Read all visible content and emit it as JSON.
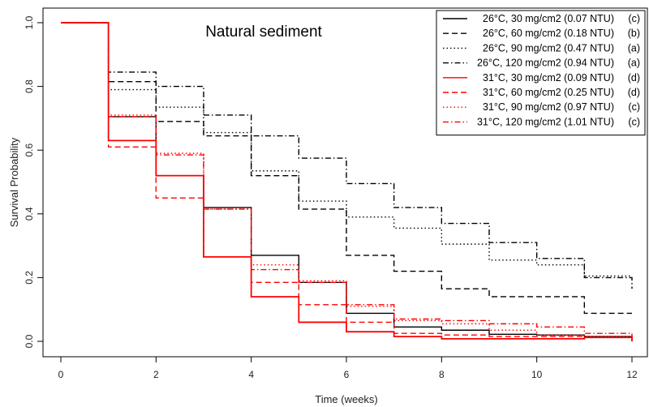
{
  "chart_data": {
    "type": "line",
    "step": true,
    "title": "Natural sediment",
    "xlabel": "Time (weeks)",
    "ylabel": "Survival Probability",
    "xlim": [
      0,
      12
    ],
    "ylim": [
      0,
      1
    ],
    "xticks": [
      0,
      2,
      4,
      6,
      8,
      10,
      12
    ],
    "yticks": [
      0.0,
      0.2,
      0.4,
      0.6,
      0.8,
      1.0
    ],
    "xtick_labels": [
      "0",
      "2",
      "4",
      "6",
      "8",
      "10",
      "12"
    ],
    "ytick_labels": [
      "0.0",
      "0.2",
      "0.4",
      "0.6",
      "0.8",
      "1.0"
    ],
    "grid": false,
    "legend_position": "top-right",
    "series": [
      {
        "name": "26°C,  30 mg/cm2 (0.07 NTU)",
        "group": "(c)",
        "color": "#000000",
        "dash": "solid",
        "x": [
          0,
          1,
          2,
          3,
          4,
          5,
          6,
          7,
          8,
          9,
          10,
          11,
          12
        ],
        "values": [
          1.0,
          0.705,
          0.52,
          0.42,
          0.27,
          0.185,
          0.088,
          0.045,
          0.035,
          0.022,
          0.02,
          0.015,
          0.0
        ]
      },
      {
        "name": "26°C,  60 mg/cm2 (0.18 NTU)",
        "group": "(b)",
        "color": "#000000",
        "dash": "dashed",
        "x": [
          0,
          1,
          2,
          3,
          4,
          5,
          6,
          7,
          8,
          9,
          10,
          11,
          12
        ],
        "values": [
          1.0,
          0.815,
          0.69,
          0.645,
          0.52,
          0.415,
          0.27,
          0.22,
          0.165,
          0.14,
          0.14,
          0.088,
          0.088
        ]
      },
      {
        "name": "26°C,  90 mg/cm2 (0.47 NTU)",
        "group": "(a)",
        "color": "#000000",
        "dash": "dotted",
        "x": [
          0,
          1,
          2,
          3,
          4,
          5,
          6,
          7,
          8,
          9,
          10,
          11,
          12
        ],
        "values": [
          1.0,
          0.79,
          0.735,
          0.655,
          0.535,
          0.44,
          0.39,
          0.355,
          0.305,
          0.255,
          0.24,
          0.205,
          0.205
        ]
      },
      {
        "name": "26°C, 120 mg/cm2 (0.94 NTU)",
        "group": "(a)",
        "color": "#000000",
        "dash": "dashdot",
        "x": [
          0,
          1,
          2,
          3,
          4,
          5,
          6,
          7,
          8,
          9,
          10,
          11,
          12
        ],
        "values": [
          1.0,
          0.845,
          0.8,
          0.71,
          0.645,
          0.575,
          0.495,
          0.42,
          0.37,
          0.31,
          0.26,
          0.2,
          0.165
        ]
      },
      {
        "name": "31°C,  30 mg/cm2 (0.09 NTU)",
        "group": "(d)",
        "color": "#ff0000",
        "dash": "solid",
        "x": [
          0,
          1,
          2,
          3,
          4,
          5,
          6,
          7,
          8,
          11,
          12
        ],
        "values": [
          1.0,
          0.63,
          0.52,
          0.265,
          0.14,
          0.06,
          0.03,
          0.015,
          0.008,
          0.012,
          0.0
        ]
      },
      {
        "name": "31°C,  60 mg/cm2 (0.25 NTU)",
        "group": "(d)",
        "color": "#ff0000",
        "dash": "dashed",
        "x": [
          0,
          1,
          2,
          3,
          4,
          5,
          6,
          7,
          8,
          9,
          10,
          11,
          12
        ],
        "values": [
          1.0,
          0.61,
          0.45,
          0.265,
          0.185,
          0.115,
          0.06,
          0.025,
          0.02,
          0.015,
          0.015,
          0.012,
          0.012
        ]
      },
      {
        "name": "31°C,  90 mg/cm2 (0.97 NTU)",
        "group": "(c)",
        "color": "#ff0000",
        "dash": "dotted",
        "x": [
          0,
          1,
          2,
          3,
          4,
          5,
          6,
          7,
          8,
          9,
          10,
          11,
          12
        ],
        "values": [
          1.0,
          0.71,
          0.59,
          0.415,
          0.24,
          0.19,
          0.11,
          0.065,
          0.055,
          0.035,
          0.02,
          0.015,
          0.015
        ]
      },
      {
        "name": "31°C, 120 mg/cm2 (1.01 NTU)",
        "group": "(c)",
        "color": "#ff0000",
        "dash": "dashdot",
        "x": [
          0,
          1,
          2,
          3,
          4,
          5,
          6,
          7,
          8,
          9,
          10,
          11,
          12
        ],
        "values": [
          1.0,
          0.705,
          0.585,
          0.415,
          0.225,
          0.185,
          0.115,
          0.07,
          0.065,
          0.055,
          0.045,
          0.025,
          0.015
        ]
      }
    ]
  }
}
